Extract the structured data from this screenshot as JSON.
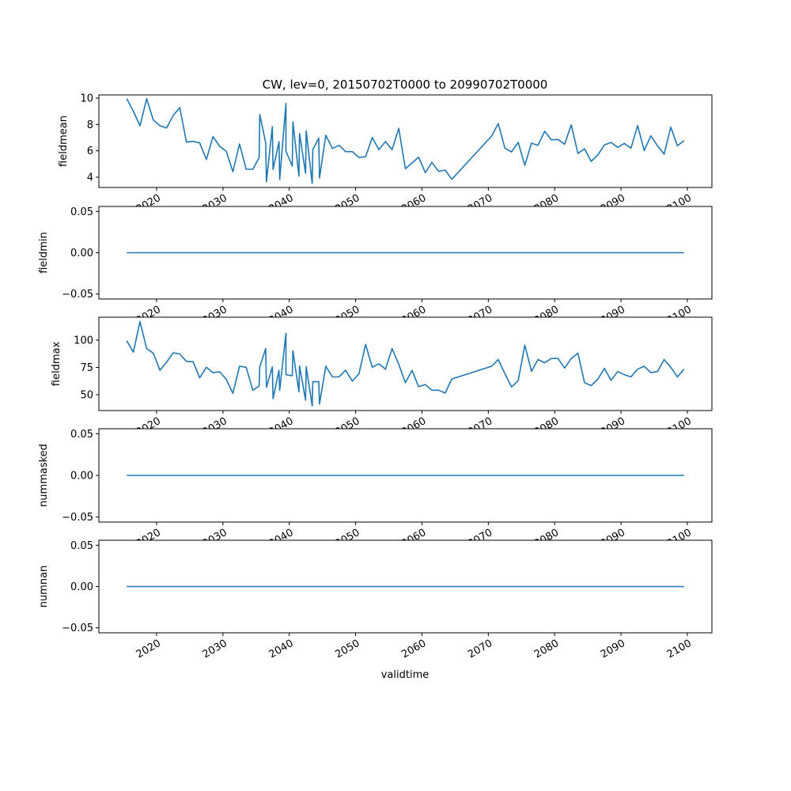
{
  "chart_data": {
    "type": "line",
    "title": "CW, lev=0, 20150702T0000 to 20990702T0000",
    "xlabel": "validtime",
    "xlim": [
      2011.3,
      2103.7
    ],
    "xticks": [
      2020,
      2030,
      2040,
      2050,
      2060,
      2070,
      2080,
      2090,
      2100
    ],
    "xtick_labels": [
      "2020",
      "2030",
      "2040",
      "2050",
      "2060",
      "2070",
      "2080",
      "2090",
      "2100"
    ],
    "line_color": "#1f77b4",
    "grid": false,
    "x": [
      2015.5,
      2016.5,
      2017.5,
      2018.5,
      2019.5,
      2020.5,
      2021.5,
      2022.5,
      2023.5,
      2024.5,
      2025.5,
      2026.5,
      2027.5,
      2028.5,
      2029.5,
      2030.5,
      2031.5,
      2032.5,
      2033.5,
      2034.5,
      2035.45,
      2035.55,
      2036.45,
      2036.55,
      2037.45,
      2037.55,
      2038.45,
      2038.55,
      2039.5,
      2039.5,
      2040.45,
      2040.55,
      2041.45,
      2041.55,
      2042.45,
      2042.55,
      2043.45,
      2043.55,
      2044.45,
      2044.55,
      2045.5,
      2046.5,
      2047.5,
      2048.5,
      2049.5,
      2050.5,
      2051.5,
      2052.5,
      2053.5,
      2054.5,
      2055.5,
      2056.5,
      2057.5,
      2058.5,
      2059.5,
      2060.5,
      2061.5,
      2062.5,
      2063.5,
      2064.5,
      2070.5,
      2071.5,
      2072.5,
      2073.5,
      2074.5,
      2075.5,
      2076.5,
      2077.5,
      2078.5,
      2079.5,
      2080.5,
      2081.5,
      2082.5,
      2083.5,
      2084.5,
      2085.5,
      2086.5,
      2087.5,
      2088.5,
      2089.5,
      2090.5,
      2091.5,
      2092.5,
      2093.5,
      2094.5,
      2095.5,
      2096.5,
      2097.5,
      2098.5,
      2099.5
    ],
    "panels": [
      {
        "ylabel": "fieldmean",
        "ylim": [
          3.22,
          10.24
        ],
        "yticks": [
          4,
          6,
          8,
          10
        ],
        "ytick_labels": [
          "4",
          "6",
          "8",
          "10"
        ],
        "values": [
          9.96,
          9.0,
          7.9,
          9.96,
          8.34,
          7.9,
          7.74,
          8.68,
          9.28,
          6.66,
          6.72,
          6.6,
          5.34,
          7.08,
          6.34,
          5.96,
          4.42,
          6.52,
          4.6,
          4.6,
          5.48,
          8.76,
          6.6,
          3.64,
          7.84,
          4.58,
          6.7,
          3.82,
          9.6,
          5.98,
          4.84,
          8.2,
          4.08,
          7.32,
          4.3,
          7.52,
          3.52,
          6.1,
          6.96,
          3.94,
          7.18,
          6.18,
          6.42,
          5.94,
          5.94,
          5.5,
          5.54,
          7.02,
          6.08,
          6.7,
          6.08,
          7.7,
          4.64,
          5.08,
          5.52,
          4.34,
          5.12,
          4.44,
          4.54,
          3.84,
          7.12,
          8.06,
          6.2,
          5.92,
          6.64,
          4.9,
          6.58,
          6.42,
          7.48,
          6.84,
          6.86,
          6.5,
          7.98,
          5.8,
          6.16,
          5.2,
          5.68,
          6.44,
          6.64,
          6.26,
          6.56,
          6.2,
          7.92,
          6.02,
          7.14,
          6.38,
          5.74,
          7.8,
          6.38,
          6.78
        ]
      },
      {
        "ylabel": "fieldmin",
        "ylim": [
          -0.056,
          0.056
        ],
        "yticks": [
          -0.05,
          0.0,
          0.05
        ],
        "ytick_labels": [
          "−0.05",
          "0.00",
          "0.05"
        ],
        "constant": 0
      },
      {
        "ylabel": "fieldmax",
        "ylim": [
          35.5,
          121.0
        ],
        "yticks": [
          50,
          75,
          100
        ],
        "ytick_labels": [
          "50",
          "75",
          "100"
        ],
        "values": [
          99.5,
          89.0,
          117.1,
          92.2,
          88.0,
          72.4,
          79.8,
          88.3,
          87.3,
          80.5,
          80.2,
          65.4,
          75.1,
          70.2,
          71.0,
          64.1,
          51.2,
          76.1,
          75.1,
          54.1,
          58.0,
          75.6,
          92.2,
          56.8,
          75.4,
          46.3,
          72.4,
          53.9,
          106.3,
          68.3,
          67.3,
          90.2,
          52.7,
          76.3,
          44.9,
          75.6,
          39.8,
          61.9,
          61.9,
          41.5,
          76.1,
          66.3,
          66.3,
          72.4,
          62.4,
          69.3,
          96.1,
          75.1,
          78.3,
          73.4,
          92.2,
          77.8,
          61.0,
          72.2,
          57.3,
          59.3,
          54.1,
          54.1,
          51.5,
          64.4,
          76.1,
          82.2,
          69.3,
          57.1,
          62.9,
          95.4,
          71.5,
          82.2,
          79.3,
          83.2,
          83.2,
          74.4,
          83.2,
          88.0,
          61.0,
          58.3,
          64.1,
          74.1,
          63.2,
          71.2,
          68.3,
          66.3,
          73.4,
          76.1,
          70.2,
          71.2,
          82.2,
          75.1,
          66.3,
          73.4
        ]
      },
      {
        "ylabel": "nummasked",
        "ylim": [
          -0.056,
          0.056
        ],
        "yticks": [
          -0.05,
          0.0,
          0.05
        ],
        "ytick_labels": [
          "−0.05",
          "0.00",
          "0.05"
        ],
        "constant": 0
      },
      {
        "ylabel": "numnan",
        "ylim": [
          -0.056,
          0.056
        ],
        "yticks": [
          -0.05,
          0.0,
          0.05
        ],
        "ytick_labels": [
          "−0.05",
          "0.00",
          "0.05"
        ],
        "constant": 0
      }
    ]
  }
}
